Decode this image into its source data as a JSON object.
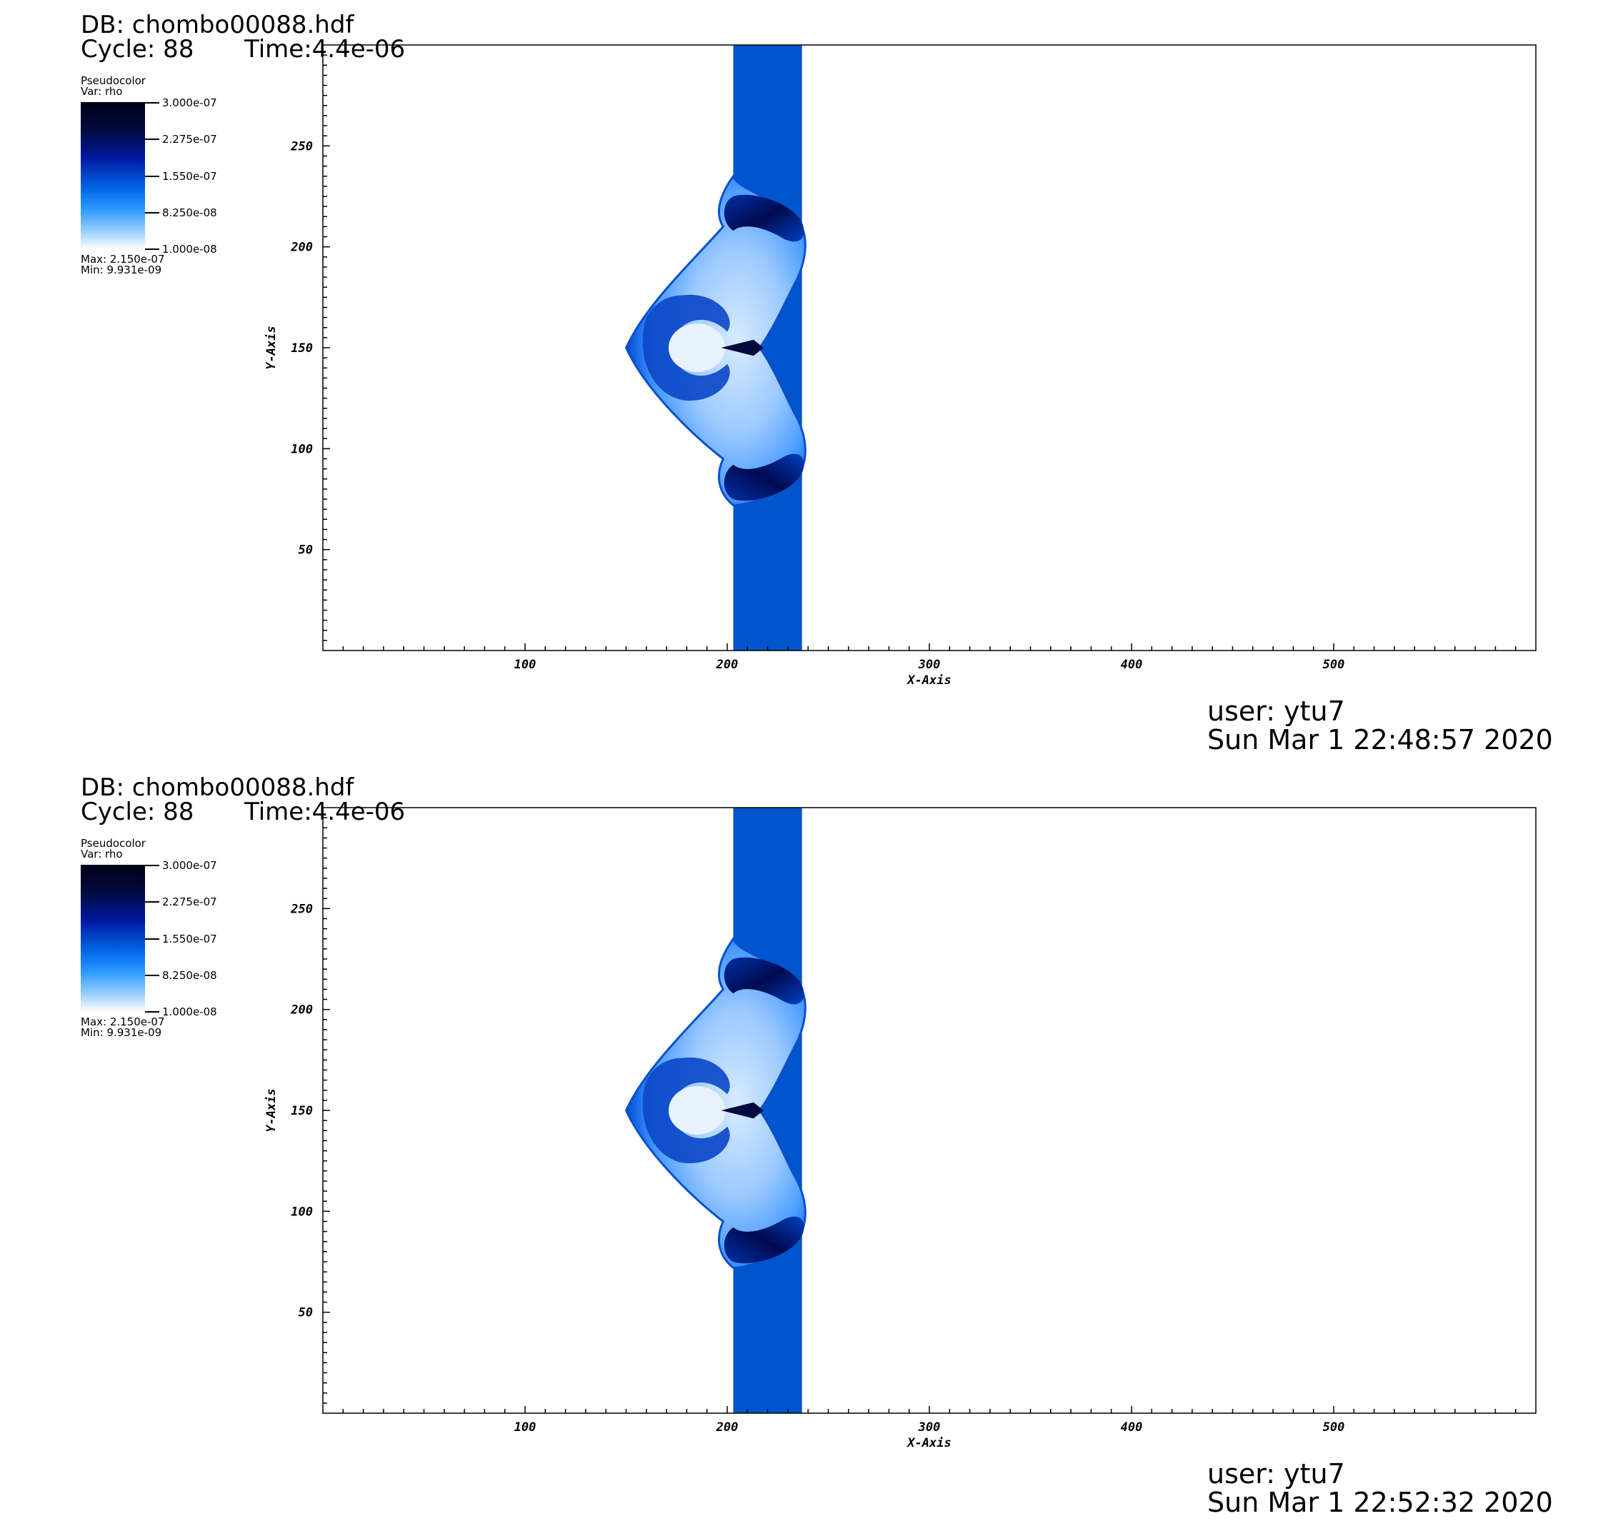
{
  "panels": [
    {
      "db": "DB: chombo00088.hdf",
      "cycle": "Cycle: 88",
      "time": "Time:4.4e-06",
      "legend": {
        "plot": "Pseudocolor",
        "var": "Var: rho",
        "ticks": [
          "3.000e-07",
          "2.275e-07",
          "1.550e-07",
          "8.250e-08",
          "1.000e-08"
        ],
        "max": "Max: 2.150e-07",
        "min": "Min: 9.931e-09"
      },
      "user": "user: ytu7",
      "date": "Sun Mar  1 22:48:57 2020"
    },
    {
      "db": "DB: chombo00088.hdf",
      "cycle": "Cycle: 88",
      "time": "Time:4.4e-06",
      "legend": {
        "plot": "Pseudocolor",
        "var": "Var: rho",
        "ticks": [
          "3.000e-07",
          "2.275e-07",
          "1.550e-07",
          "8.250e-08",
          "1.000e-08"
        ],
        "max": "Max: 2.150e-07",
        "min": "Min: 9.931e-09"
      },
      "user": "user: ytu7",
      "date": "Sun Mar  1 22:52:32 2020"
    }
  ],
  "chart_data": [
    {
      "type": "heatmap",
      "xlabel": "X-Axis",
      "ylabel": "Y-Axis",
      "xlim": [
        0,
        600
      ],
      "ylim": [
        0,
        300
      ],
      "xticks": [
        100,
        200,
        300,
        400,
        500
      ],
      "yticks": [
        50,
        100,
        150,
        200,
        250
      ],
      "colors": {
        "dense": "#000a3c",
        "band": "#0055cc",
        "light": "#bcdcff"
      }
    },
    {
      "type": "heatmap",
      "xlabel": "X-Axis",
      "ylabel": "Y-Axis",
      "xlim": [
        0,
        600
      ],
      "ylim": [
        0,
        300
      ],
      "xticks": [
        100,
        200,
        300,
        400,
        500
      ],
      "yticks": [
        50,
        100,
        150,
        200,
        250
      ],
      "colors": {
        "dense": "#000a3c",
        "band": "#0055cc",
        "light": "#bcdcff"
      }
    }
  ]
}
